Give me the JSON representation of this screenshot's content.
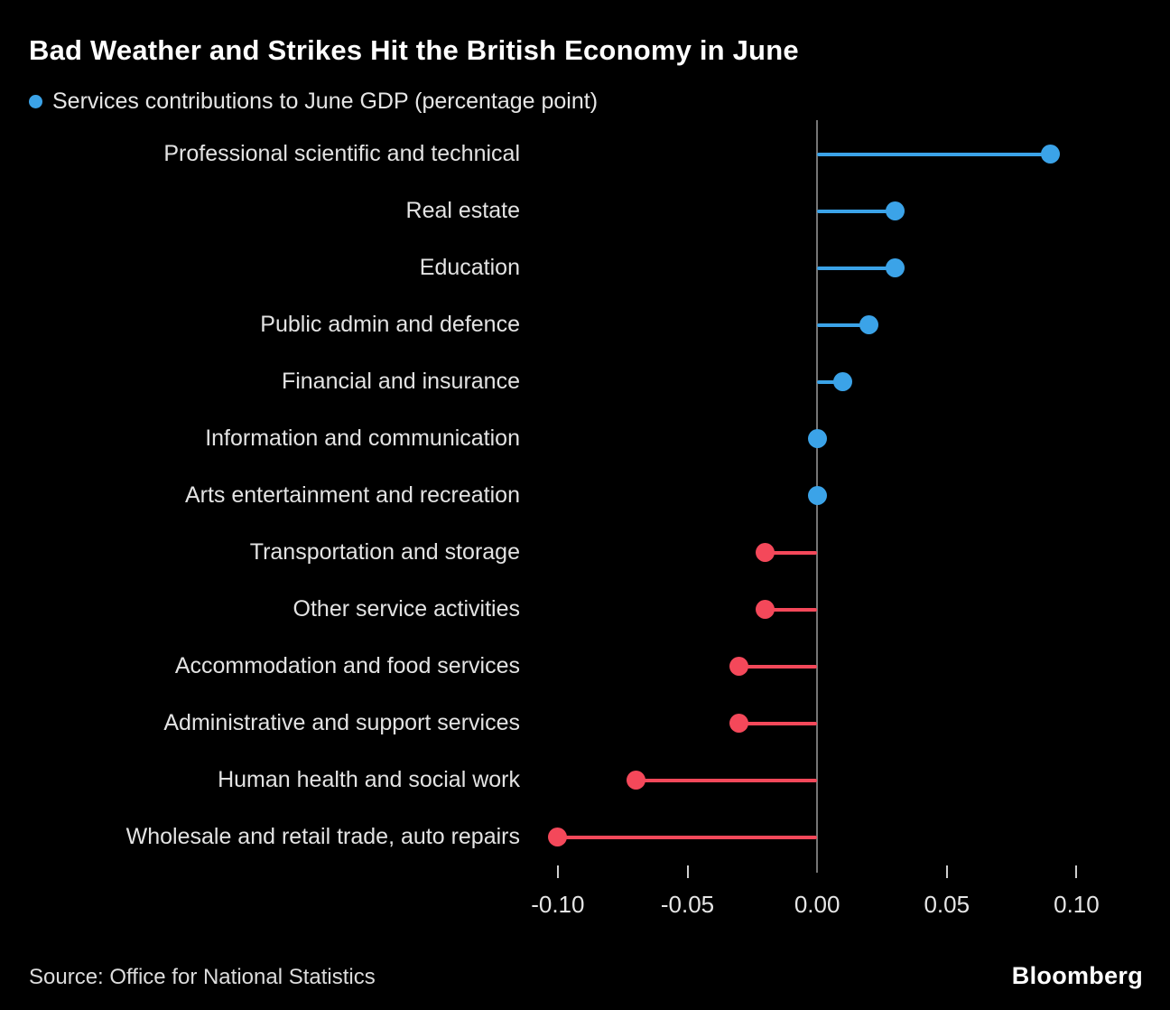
{
  "title": "Bad Weather and Strikes Hit the British Economy in June",
  "legend": {
    "label": "Services contributions to June GDP (percentage point)",
    "marker_color": "#3ba3e8"
  },
  "source": "Source: Office for National Statistics",
  "brand": "Bloomberg",
  "chart_data": {
    "type": "lollipop",
    "orientation": "horizontal",
    "title": "Bad Weather and Strikes Hit the British Economy in June",
    "series_name": "Services contributions to June GDP (percentage point)",
    "categories": [
      "Professional scientific and technical",
      "Real estate",
      "Education",
      "Public admin and defence",
      "Financial and insurance",
      "Information and communication",
      "Arts entertainment and recreation",
      "Transportation and storage",
      "Other service activities",
      "Accommodation and food services",
      "Administrative and support services",
      "Human health and social work",
      "Wholesale and retail trade, auto repairs"
    ],
    "values": [
      0.09,
      0.03,
      0.03,
      0.02,
      0.01,
      0.0,
      0.0,
      -0.02,
      -0.02,
      -0.03,
      -0.03,
      -0.07,
      -0.1
    ],
    "positive_color": "#3ba3e8",
    "negative_color": "#f4485a",
    "zero_line": true,
    "zero_line_color": "#757575",
    "grid": false,
    "xlim": [
      -0.109,
      0.127
    ],
    "xticks": [
      -0.1,
      -0.05,
      0.0,
      0.05,
      0.1
    ],
    "xtick_labels": [
      "-0.10",
      "-0.05",
      "0.00",
      "0.05",
      "0.10"
    ],
    "legend_position": "top-left"
  }
}
